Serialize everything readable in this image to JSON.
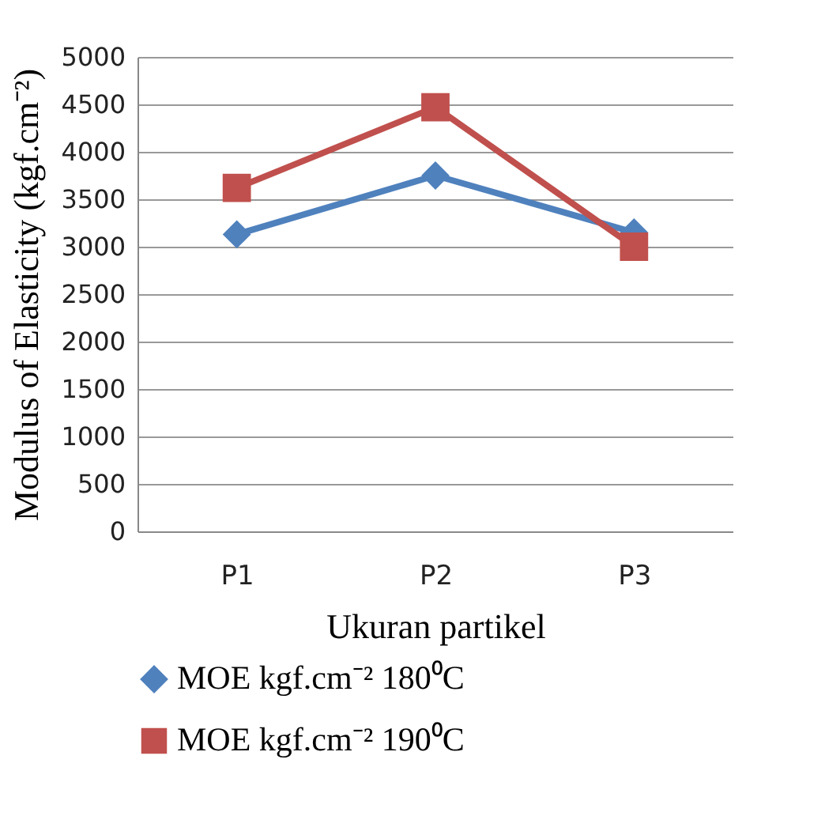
{
  "chart_data": {
    "type": "line",
    "xlabel": "Ukuran partikel",
    "ylabel": "Modulus of Elasticity (kgf.cm⁻²)",
    "categories": [
      "P1",
      "P2",
      "P3"
    ],
    "series": [
      {
        "name": "MOE kgf.cm⁻² 180⁰C",
        "color": "#4f81bd",
        "marker": "diamond",
        "values": [
          3130,
          3750,
          3150
        ]
      },
      {
        "name": "MOE kgf.cm⁻² 190⁰C",
        "color": "#c0504d",
        "marker": "square",
        "values": [
          3620,
          4470,
          3000
        ]
      }
    ],
    "ylim": [
      0,
      5000
    ],
    "yticks": [
      0,
      500,
      1000,
      1500,
      2000,
      2500,
      3000,
      3500,
      4000,
      4500,
      5000
    ],
    "grid": "y",
    "legend": "bottom"
  }
}
